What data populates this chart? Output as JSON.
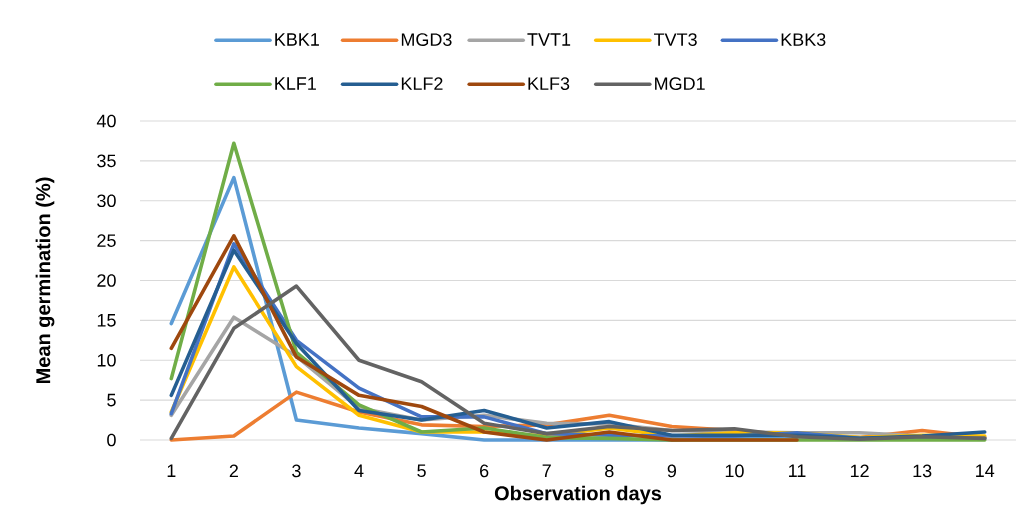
{
  "chart_data": {
    "type": "line",
    "xlabel": "Observation days",
    "ylabel": "Mean germination (%)",
    "categories": [
      "1",
      "2",
      "3",
      "4",
      "5",
      "6",
      "7",
      "8",
      "9",
      "10",
      "11",
      "12",
      "13",
      "14"
    ],
    "ylim": [
      0,
      40
    ],
    "yticks": [
      0,
      5,
      10,
      15,
      20,
      25,
      30,
      35,
      40
    ],
    "grid": "y",
    "legend": "top",
    "marker": "none",
    "line_style": "solid",
    "series": [
      {
        "name": "KBK1",
        "color": "#5b9bd5",
        "values": [
          14.6,
          32.9,
          2.5,
          1.5,
          0.8,
          0,
          0,
          0,
          0,
          0.3,
          0.5,
          0.3,
          null,
          null
        ]
      },
      {
        "name": "MGD3",
        "color": "#ed7d31",
        "values": [
          0,
          0.5,
          6,
          3.5,
          1.9,
          1.7,
          1.9,
          3.1,
          1.7,
          1.2,
          0.6,
          0.3,
          1.2,
          0.3
        ]
      },
      {
        "name": "TVT1",
        "color": "#a5a5a5",
        "values": [
          3.1,
          15.4,
          10.5,
          4,
          2.5,
          3.1,
          2.1,
          2,
          1.2,
          1,
          0.9,
          0.9,
          0.5,
          0.3
        ]
      },
      {
        "name": "TVT3",
        "color": "#ffc000",
        "values": [
          3.5,
          21.7,
          9.2,
          3.1,
          1,
          1,
          0.5,
          1.5,
          0.5,
          0.9,
          0.9,
          0.3,
          0.6,
          0.5
        ]
      },
      {
        "name": "KBK3",
        "color": "#4472c4",
        "values": [
          3.3,
          24.6,
          12.5,
          6.5,
          2.9,
          2.9,
          0.8,
          0.6,
          0.5,
          0.5,
          0.9,
          0.2,
          0.2,
          0.2
        ]
      },
      {
        "name": "KLF1",
        "color": "#70ad47",
        "values": [
          7.7,
          37.2,
          11,
          4.4,
          1,
          1.5,
          0.3,
          0.2,
          0,
          0,
          0,
          0,
          0,
          0
        ]
      },
      {
        "name": "KLF2",
        "color": "#255e91",
        "values": [
          5.6,
          23.8,
          12.1,
          3.7,
          2.5,
          3.7,
          1.5,
          2.3,
          0.6,
          0.6,
          0.6,
          0.2,
          0.5,
          1
        ]
      },
      {
        "name": "KLF3",
        "color": "#9e480e",
        "values": [
          11.5,
          25.6,
          10.4,
          5.6,
          4.2,
          1,
          0,
          1,
          0,
          0,
          0,
          null,
          null,
          null
        ]
      },
      {
        "name": "MGD1",
        "color": "#636363",
        "values": [
          0.2,
          14,
          19.3,
          10,
          7.3,
          2.1,
          0.8,
          1.7,
          1.2,
          1.4,
          0.4,
          0.1,
          0.4,
          0.2
        ]
      }
    ]
  }
}
